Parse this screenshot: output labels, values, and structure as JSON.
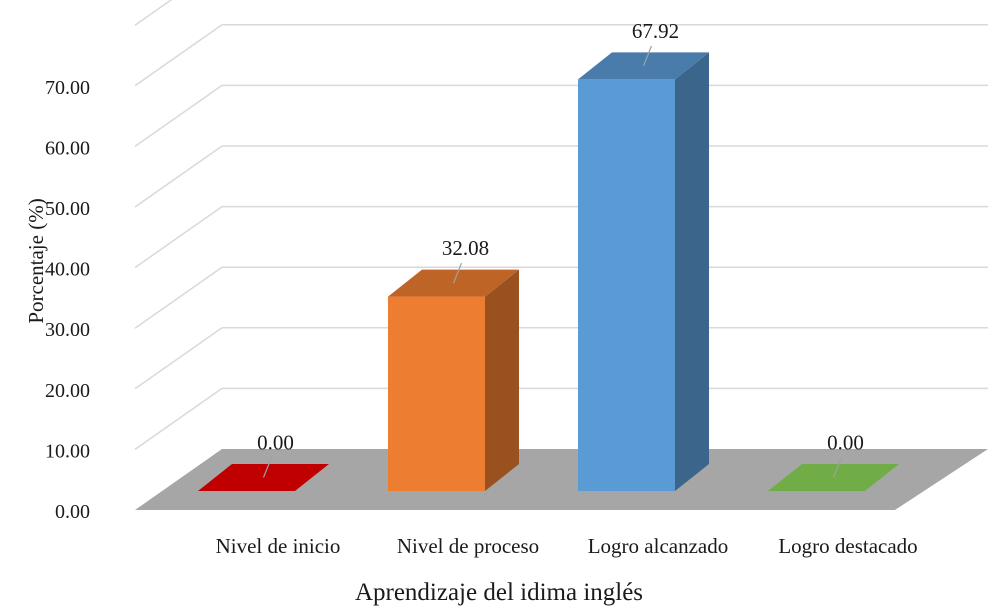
{
  "chart_data": {
    "type": "bar",
    "categories": [
      "Nivel de inicio",
      "Nivel de proceso",
      "Logro alcanzado",
      "Logro destacado"
    ],
    "values": [
      0.0,
      32.08,
      67.92,
      0.0
    ],
    "value_labels": [
      "0.00",
      "32.08",
      "67.92",
      "0.00"
    ],
    "colors": [
      "#c00000",
      "#ed7d31",
      "#5b9bd5",
      "#70ad47"
    ],
    "xlabel": "Aprendizaje del idima inglés",
    "ylabel": "Porcentaje (%)",
    "ylim": [
      0,
      70
    ],
    "yticks": [
      "0.00",
      "10.00",
      "20.00",
      "30.00",
      "40.00",
      "50.00",
      "60.00",
      "70.00"
    ],
    "grid": true,
    "floor_color": "#a6a6a6",
    "style": "3d-column"
  }
}
